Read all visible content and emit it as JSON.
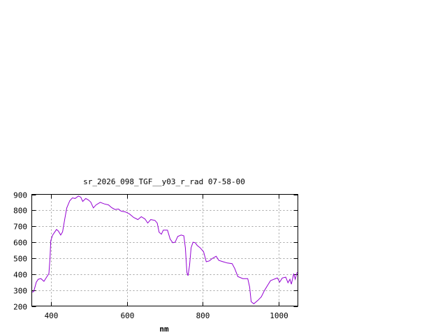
{
  "chart_data": {
    "type": "line",
    "title": "sr_2026_098_TGF__y03_r_rad 07-58-00",
    "xlabel": "nm",
    "ylabel": "",
    "xlim": [
      350,
      1050
    ],
    "ylim": [
      200,
      900
    ],
    "xticks": [
      400,
      600,
      800,
      1000
    ],
    "yticks": [
      200,
      300,
      400,
      500,
      600,
      700,
      800,
      900
    ],
    "grid": true,
    "line_color": "#9400d3",
    "series": [
      {
        "x": [
          350,
          355,
          362,
          367,
          374,
          382,
          389,
          395,
          398,
          400,
          405,
          415,
          420,
          426,
          431,
          437,
          442,
          450,
          457,
          464,
          473,
          479,
          484,
          492,
          499,
          505,
          512,
          519,
          530,
          541,
          552,
          560,
          569,
          578,
          585,
          596,
          607,
          618,
          629,
          638,
          648,
          655,
          663,
          674,
          680,
          685,
          691,
          696,
          707,
          714,
          721,
          727,
          734,
          743,
          750,
          754,
          758,
          761,
          765,
          769,
          774,
          780,
          785,
          793,
          802,
          809,
          817,
          826,
          835,
          842,
          853,
          864,
          877,
          884,
          892,
          905,
          918,
          923,
          927,
          934,
          945,
          954,
          962,
          971,
          978,
          987,
          996,
          1002,
          1009,
          1018,
          1024,
          1029,
          1033,
          1039,
          1043,
          1048
        ],
        "y": [
          288,
          290,
          350,
          368,
          372,
          355,
          381,
          403,
          500,
          610,
          645,
          680,
          670,
          645,
          665,
          750,
          815,
          860,
          878,
          874,
          890,
          882,
          856,
          874,
          865,
          852,
          815,
          834,
          850,
          840,
          834,
          817,
          805,
          808,
          795,
          790,
          777,
          755,
          742,
          760,
          745,
          720,
          742,
          737,
          720,
          663,
          650,
          676,
          676,
          620,
          597,
          600,
          636,
          645,
          640,
          565,
          410,
          390,
          455,
          565,
          600,
          597,
          580,
          565,
          540,
          478,
          483,
          500,
          512,
          486,
          478,
          470,
          466,
          435,
          385,
          372,
          372,
          320,
          227,
          214,
          236,
          258,
          297,
          332,
          359,
          368,
          376,
          350,
          376,
          381,
          346,
          368,
          337,
          403,
          368,
          412
        ]
      }
    ]
  }
}
